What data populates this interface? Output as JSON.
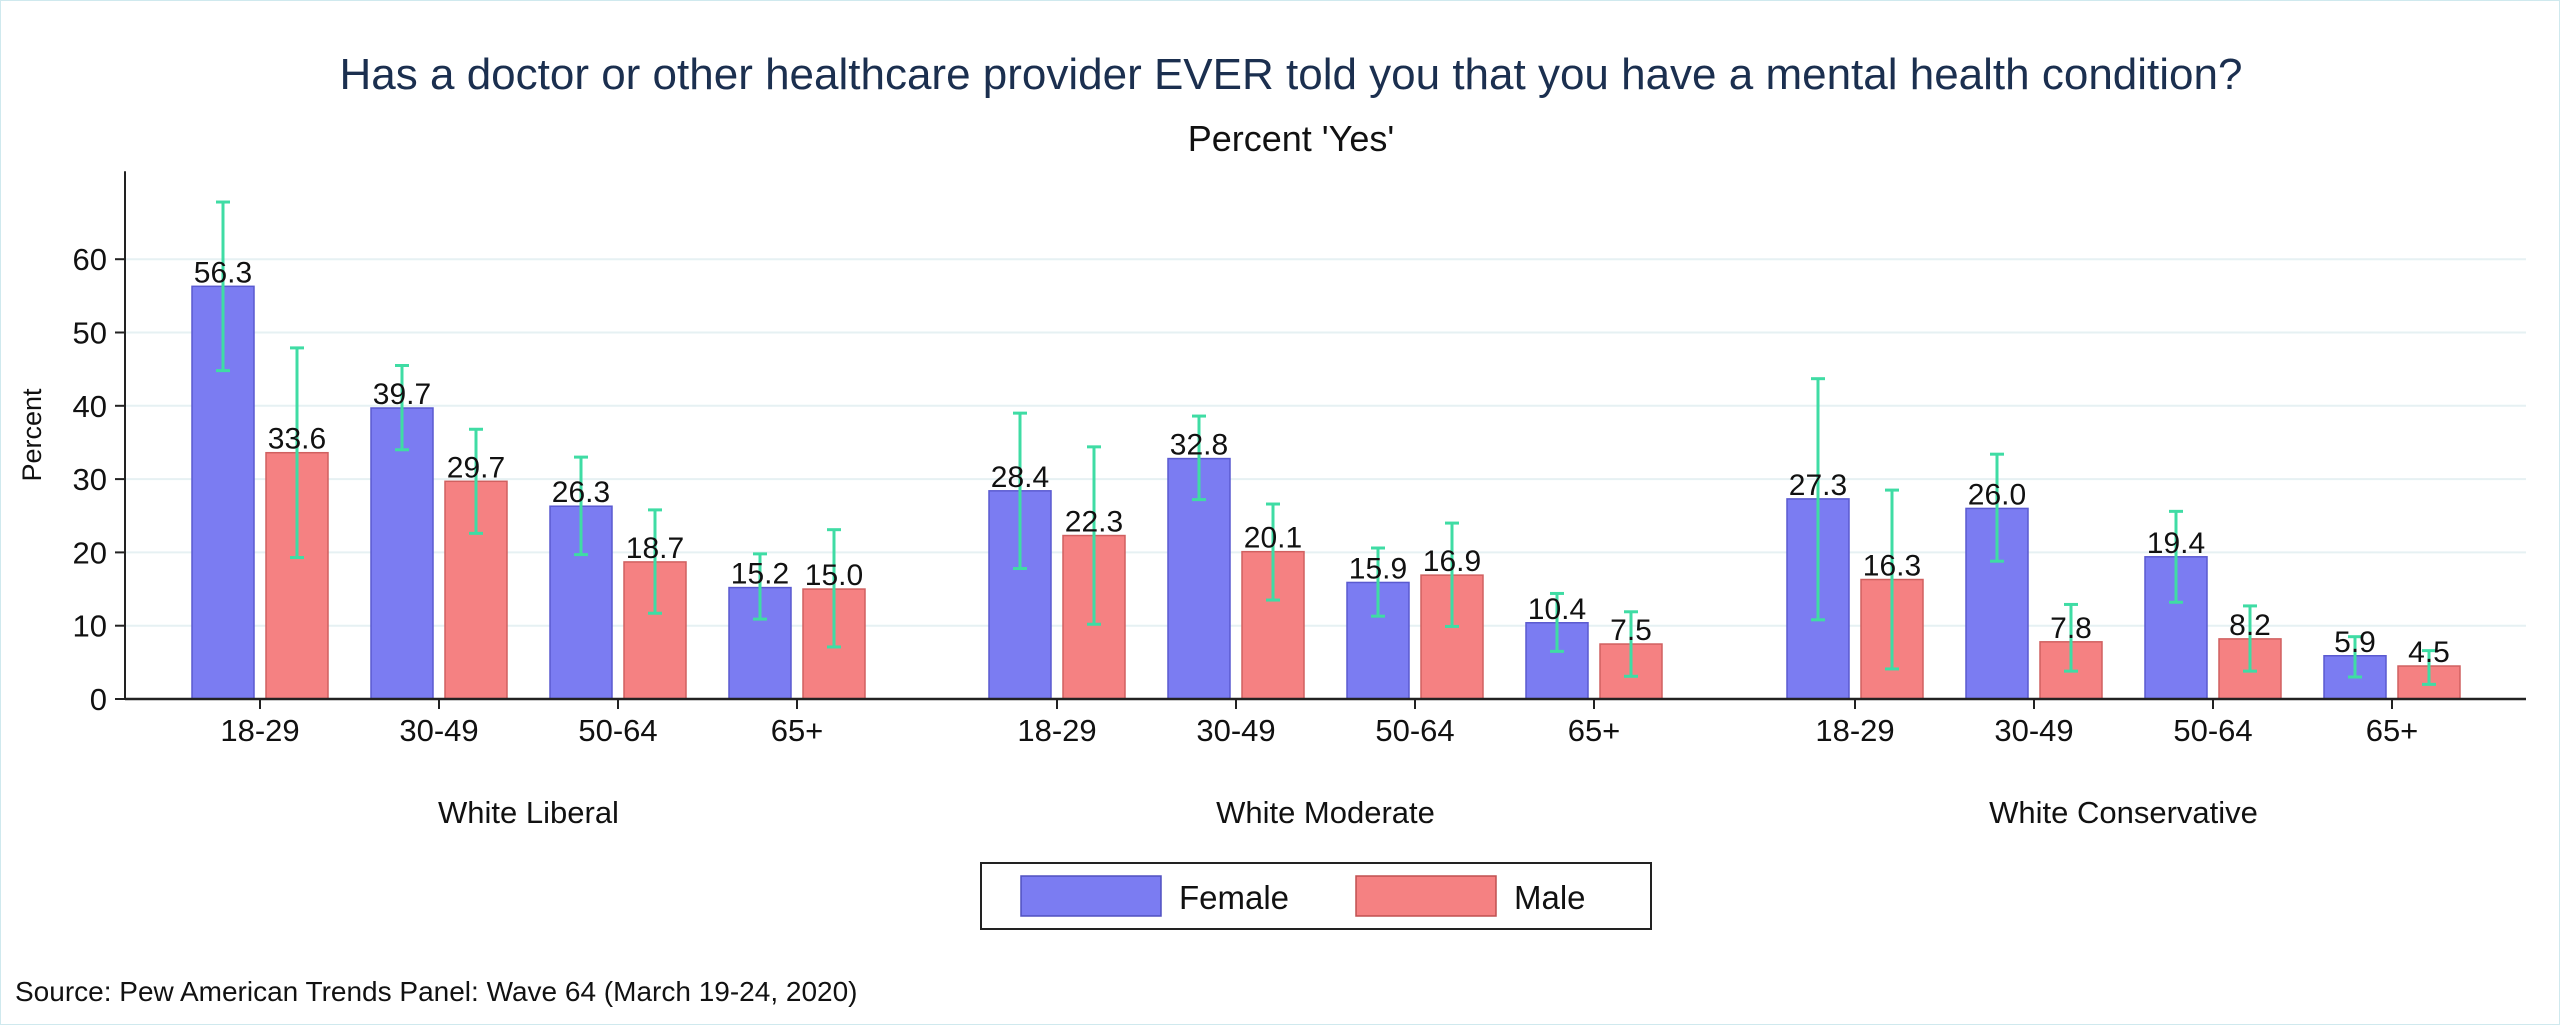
{
  "chart_data": {
    "type": "bar",
    "title": "Has a doctor or other healthcare provider EVER told you that you have a mental health condition?",
    "subtitle": "Percent 'Yes'",
    "ylabel": "Percent",
    "xlabel": "",
    "ylim": [
      0,
      72
    ],
    "yticks": [
      0,
      10,
      20,
      30,
      40,
      50,
      60
    ],
    "grid": true,
    "legend_position": "bottom",
    "groups": [
      "White Liberal",
      "White Moderate",
      "White Conservative"
    ],
    "categories": [
      "18-29",
      "30-49",
      "50-64",
      "65+"
    ],
    "series": [
      {
        "name": "Female",
        "color": "#7b7cf2",
        "values": [
          [
            56.3,
            39.7,
            26.3,
            15.2
          ],
          [
            28.4,
            32.8,
            15.9,
            10.4
          ],
          [
            27.3,
            26.0,
            19.4,
            5.9
          ]
        ],
        "ci_low": [
          [
            44.8,
            34.0,
            19.7,
            10.9
          ],
          [
            17.8,
            27.2,
            11.3,
            6.5
          ],
          [
            10.8,
            18.8,
            13.2,
            3.0
          ]
        ],
        "ci_high": [
          [
            67.8,
            45.5,
            33.0,
            19.8
          ],
          [
            39.0,
            38.6,
            20.6,
            14.4
          ],
          [
            43.7,
            33.4,
            25.6,
            8.5
          ]
        ]
      },
      {
        "name": "Male",
        "color": "#f58182",
        "values": [
          [
            33.6,
            29.7,
            18.7,
            15.0
          ],
          [
            22.3,
            20.1,
            16.9,
            7.5
          ],
          [
            16.3,
            7.8,
            8.2,
            4.5
          ]
        ],
        "ci_low": [
          [
            19.3,
            22.6,
            11.7,
            7.1
          ],
          [
            10.2,
            13.5,
            9.9,
            3.1
          ],
          [
            4.1,
            3.8,
            3.8,
            2.0
          ]
        ],
        "ci_high": [
          [
            47.9,
            36.8,
            25.8,
            23.1
          ],
          [
            34.4,
            26.6,
            24.0,
            11.9
          ],
          [
            28.5,
            12.9,
            12.7,
            6.6
          ]
        ]
      }
    ],
    "labels": [
      [
        [
          "56.3",
          "39.7",
          "26.3",
          "15.2"
        ],
        [
          "28.4",
          "32.8",
          "15.9",
          "10.4"
        ],
        [
          "27.3",
          "26.0",
          "19.4",
          "5.9"
        ]
      ],
      [
        [
          "33.6",
          "29.7",
          "18.7",
          "15.0"
        ],
        [
          "22.3",
          "20.1",
          "16.9",
          "7.5"
        ],
        [
          "16.3",
          "7.8",
          "8.2",
          "4.5"
        ]
      ]
    ],
    "errorbar_color": "#3fdca4",
    "source": "Source: Pew American Trends Panel: Wave 64 (March 19-24, 2020)"
  }
}
